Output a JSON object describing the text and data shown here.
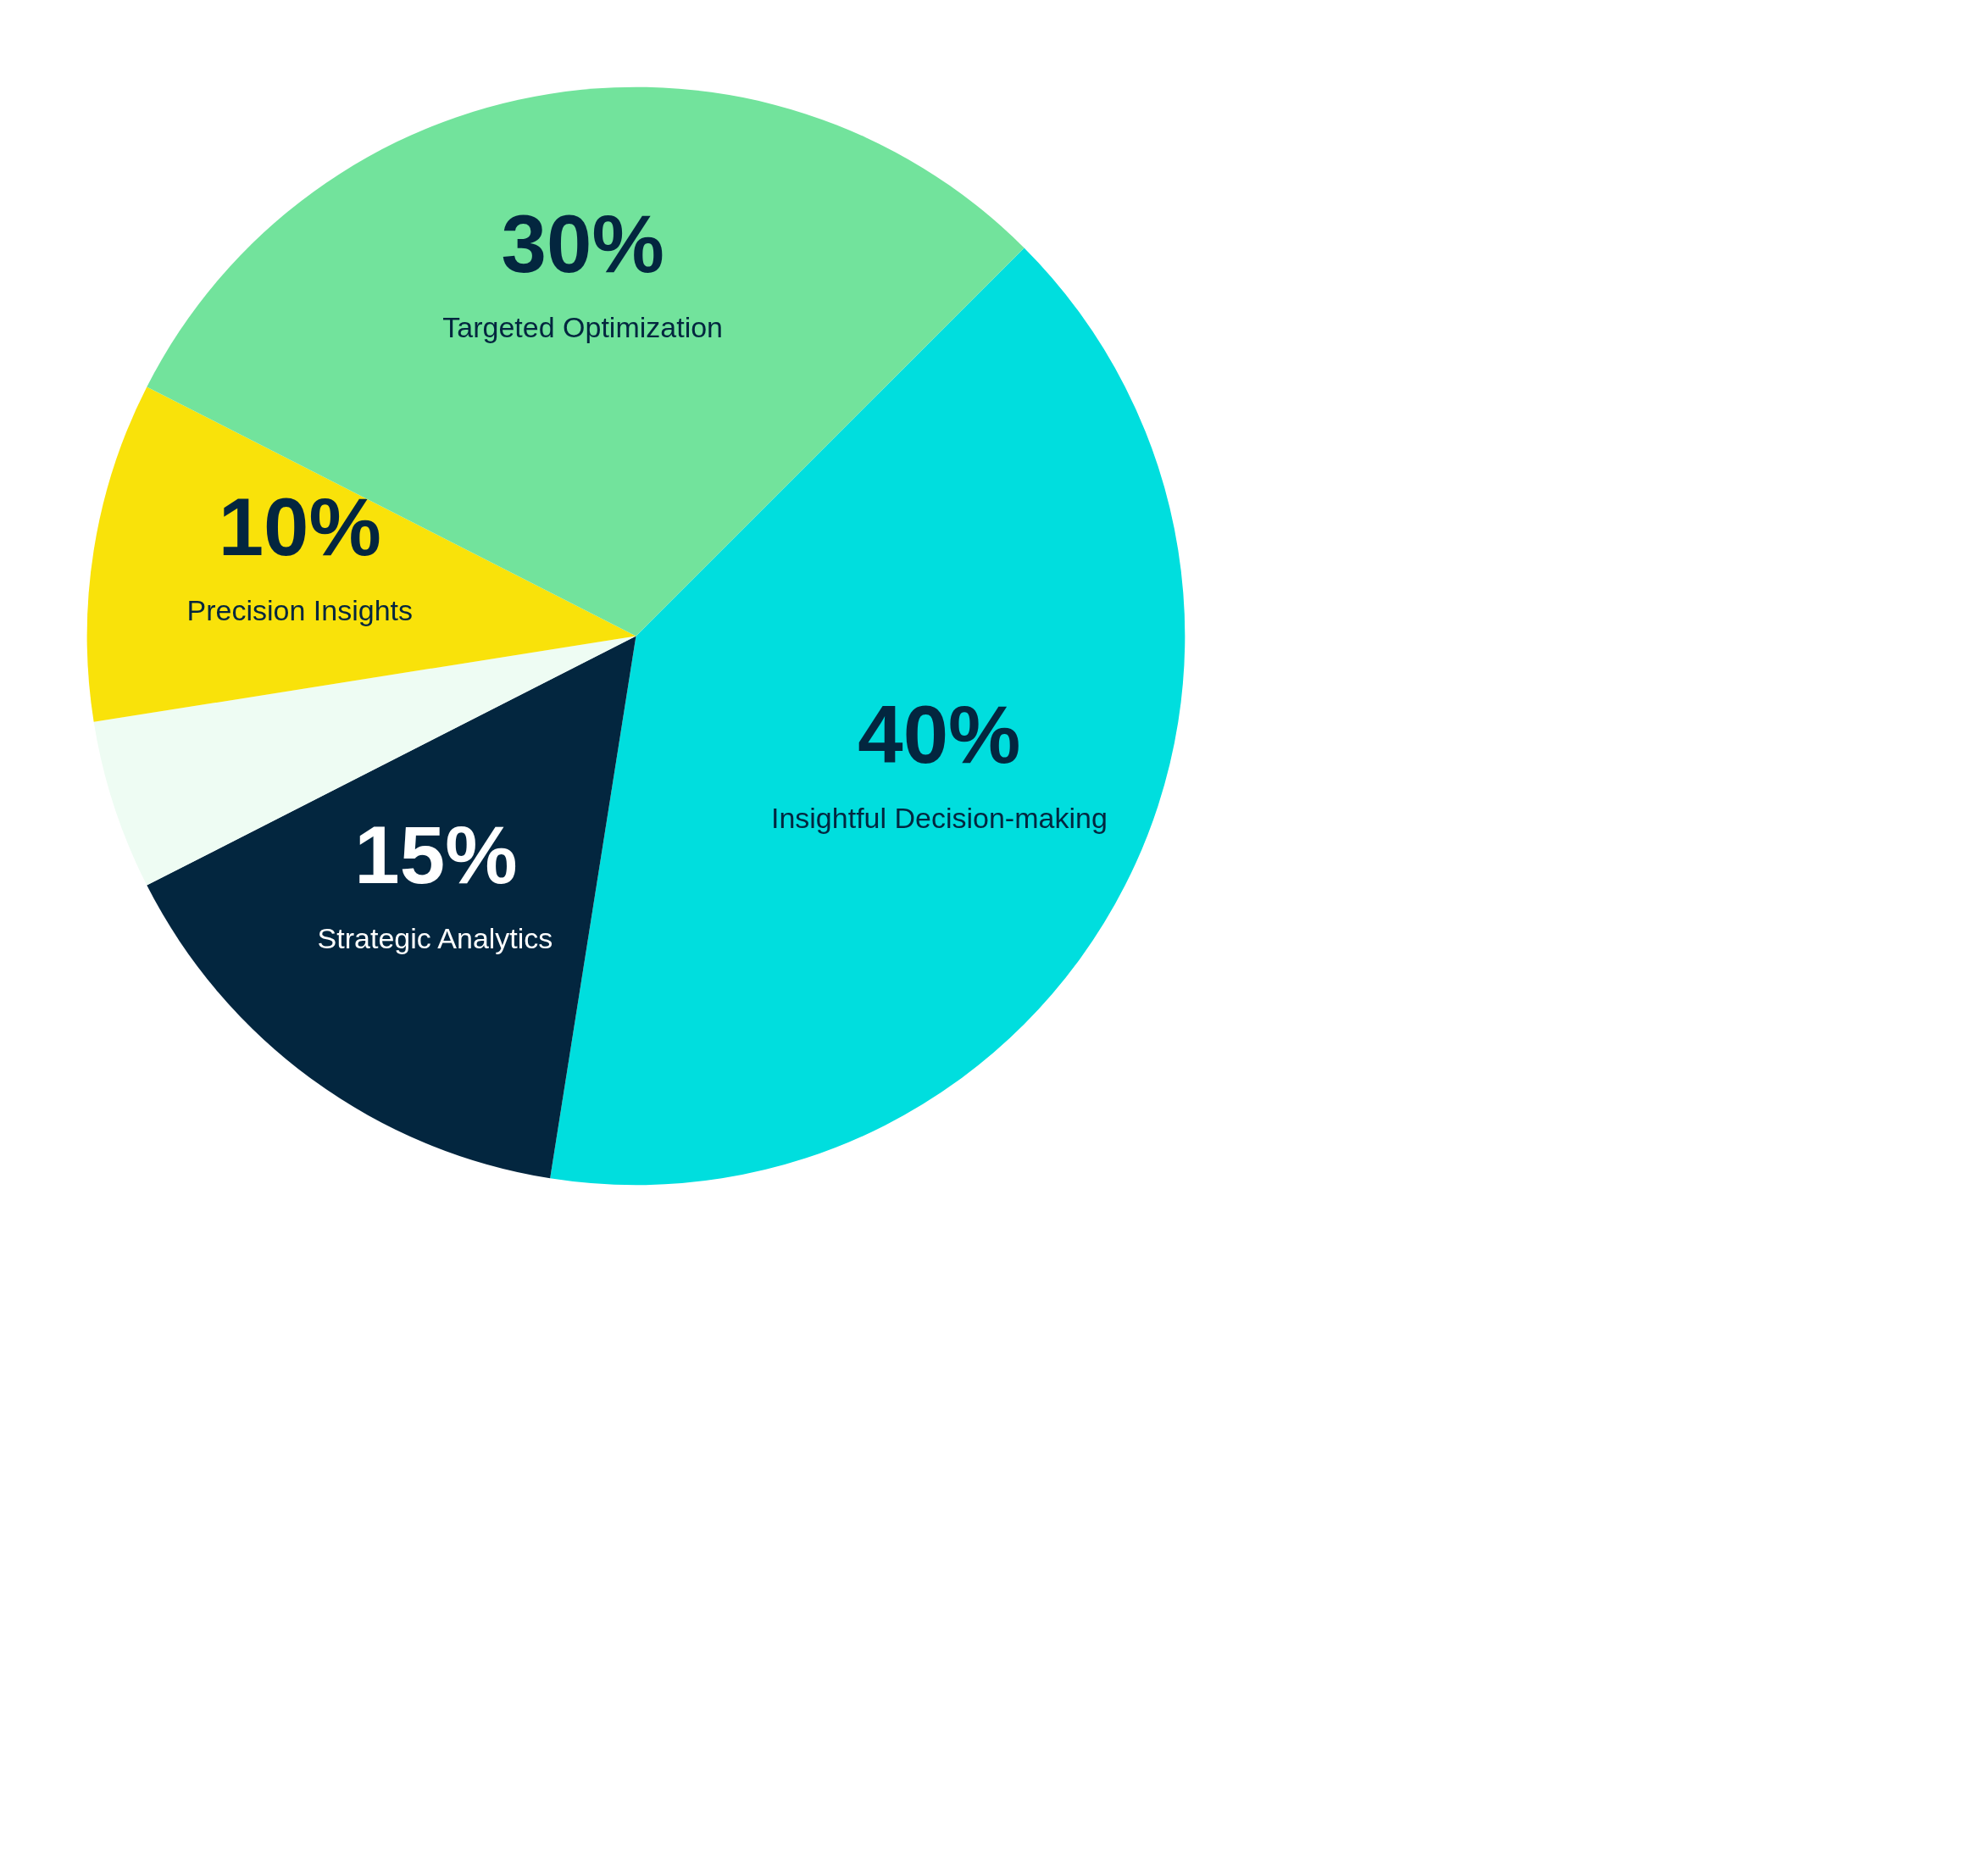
{
  "chart_data": {
    "type": "pie",
    "categories": [
      "Insightful Decision-making",
      "Strategic Analytics",
      null,
      "Precision Insights",
      "Targeted Optimization"
    ],
    "values": [
      40,
      15,
      5,
      10,
      30
    ],
    "value_labels": [
      "40%",
      "15%",
      null,
      "10%",
      "30%"
    ],
    "colors": [
      "#00dede",
      "#03263f",
      "#eefcf3",
      "#f9e20a",
      "#72e39c"
    ]
  }
}
